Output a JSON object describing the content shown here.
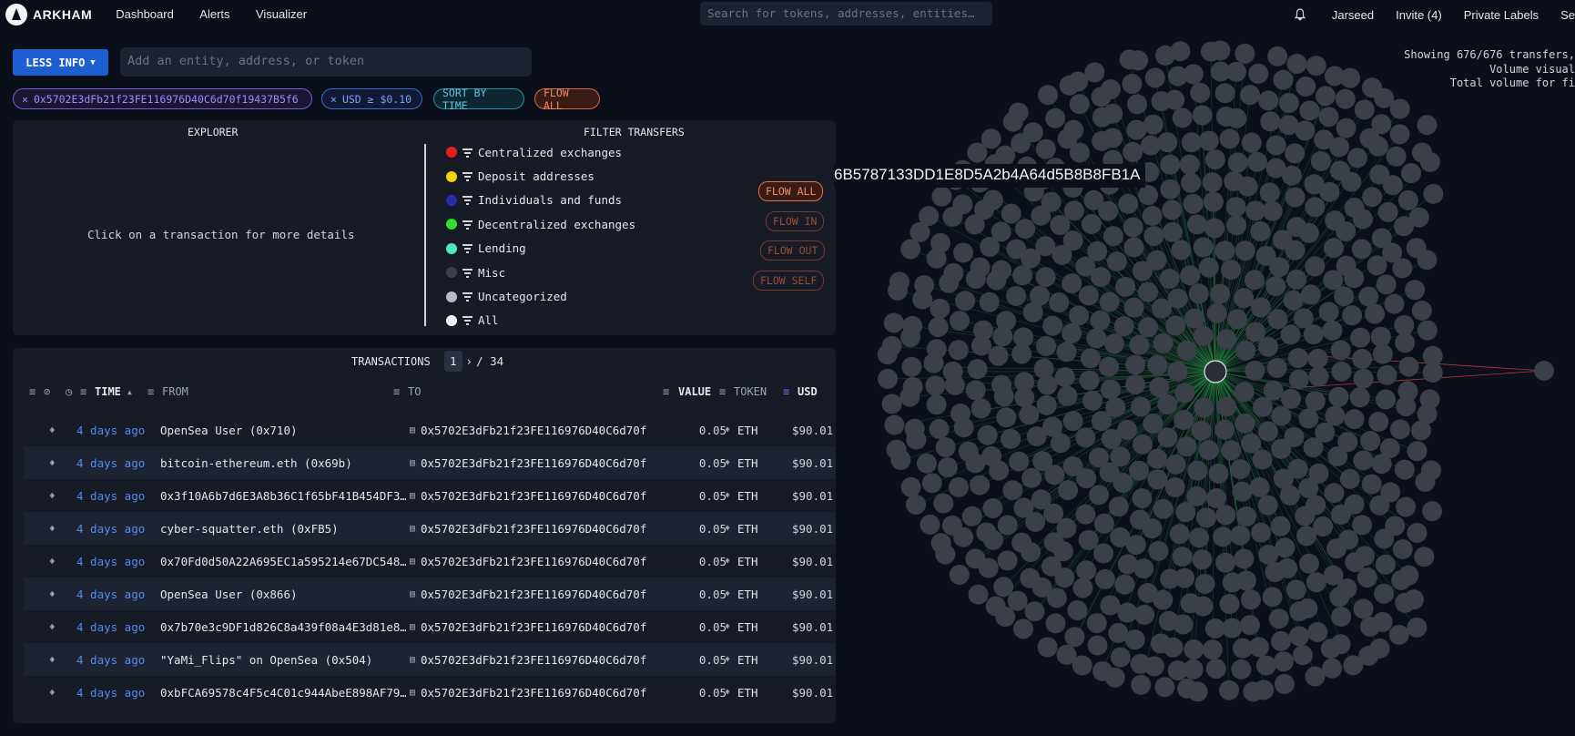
{
  "brand": "ARKHAM",
  "nav": [
    "Dashboard",
    "Alerts",
    "Visualizer"
  ],
  "top_search_placeholder": "Search for tokens, addresses, entities…",
  "top_right": {
    "user": "Jarseed",
    "invite": "Invite (4)",
    "labels": "Private Labels",
    "extra": "Se"
  },
  "controls": {
    "less_info": "LESS INFO",
    "entity_placeholder": "Add an entity, address, or token",
    "chips": {
      "address": "0x5702E3dFb21f23FE116976D40C6d70f19437B5f6",
      "usd": "USD ≥ $0.10",
      "sort": "SORT BY TIME",
      "flow": "FLOW ALL"
    }
  },
  "explorer": {
    "title": "EXPLORER",
    "message": "Click on a transaction for more details"
  },
  "filter_transfers": {
    "title": "FILTER TRANSFERS",
    "items": [
      {
        "label": "Centralized exchanges",
        "color": "#e11d1d"
      },
      {
        "label": "Deposit addresses",
        "color": "#f5d10c"
      },
      {
        "label": "Individuals and funds",
        "color": "#2b2bb0"
      },
      {
        "label": "Decentralized exchanges",
        "color": "#2ee02e"
      },
      {
        "label": "Lending",
        "color": "#4ee8c0"
      },
      {
        "label": "Misc",
        "color": "#3a3f4a"
      },
      {
        "label": "Uncategorized",
        "color": "#b8bcc4"
      },
      {
        "label": "All",
        "color": "#f5f5f5"
      }
    ],
    "flow_buttons": {
      "all": "FLOW ALL",
      "in": "FLOW IN",
      "out": "FLOW OUT",
      "self": "FLOW SELF"
    }
  },
  "transactions": {
    "title": "TRANSACTIONS",
    "page": "1",
    "total_pages": "/ 34",
    "headers": {
      "time": "TIME",
      "from": "FROM",
      "to": "TO",
      "value": "VALUE",
      "token": "TOKEN",
      "usd": "USD"
    },
    "rows": [
      {
        "time": "4 days ago",
        "from": "OpenSea User (0x710)",
        "to": "0x5702E3dFb21f23FE116976D40C6d70f…",
        "value": "0.05",
        "token": "ETH",
        "usd": "$90.01"
      },
      {
        "time": "4 days ago",
        "from": "bitcoin-ethereum.eth (0x69b)",
        "to": "0x5702E3dFb21f23FE116976D40C6d70f…",
        "value": "0.05",
        "token": "ETH",
        "usd": "$90.01"
      },
      {
        "time": "4 days ago",
        "from": "0x3f10A6b7d6E3A8b36C1f65bF41B454DF3…",
        "to": "0x5702E3dFb21f23FE116976D40C6d70f…",
        "value": "0.05",
        "token": "ETH",
        "usd": "$90.01"
      },
      {
        "time": "4 days ago",
        "from": "cyber-squatter.eth (0xFB5)",
        "to": "0x5702E3dFb21f23FE116976D40C6d70f…",
        "value": "0.05",
        "token": "ETH",
        "usd": "$90.01"
      },
      {
        "time": "4 days ago",
        "from": "0x70Fd0d50A22A695EC1a595214e67DC548…",
        "to": "0x5702E3dFb21f23FE116976D40C6d70f…",
        "value": "0.05",
        "token": "ETH",
        "usd": "$90.01"
      },
      {
        "time": "4 days ago",
        "from": "OpenSea User (0x866)",
        "to": "0x5702E3dFb21f23FE116976D40C6d70f…",
        "value": "0.05",
        "token": "ETH",
        "usd": "$90.01"
      },
      {
        "time": "4 days ago",
        "from": "0x7b70e3c9DF1d826C8a439f08a4E3d81e8…",
        "to": "0x5702E3dFb21f23FE116976D40C6d70f…",
        "value": "0.05",
        "token": "ETH",
        "usd": "$90.01"
      },
      {
        "time": "4 days ago",
        "from": "\"YaMi_Flips\" on OpenSea (0x504)",
        "to": "0x5702E3dFb21f23FE116976D40C6d70f…",
        "value": "0.05",
        "token": "ETH",
        "usd": "$90.01"
      },
      {
        "time": "4 days ago",
        "from": "0xbFCA69578c4F5c4C01c944AbeE898AF79…",
        "to": "0x5702E3dFb21f23FE116976D40C6d70f…",
        "value": "0.05",
        "token": "ETH",
        "usd": "$90.01"
      }
    ]
  },
  "graph": {
    "label": "6B5787133DD1E8D5A2b4A64d5B8B8FB1A",
    "stats": [
      "Showing 676/676 transfers,",
      "Volume visual",
      "Total volume for fi"
    ],
    "node_color": "#3b3f48",
    "edge_color": "#2f9e4a"
  }
}
